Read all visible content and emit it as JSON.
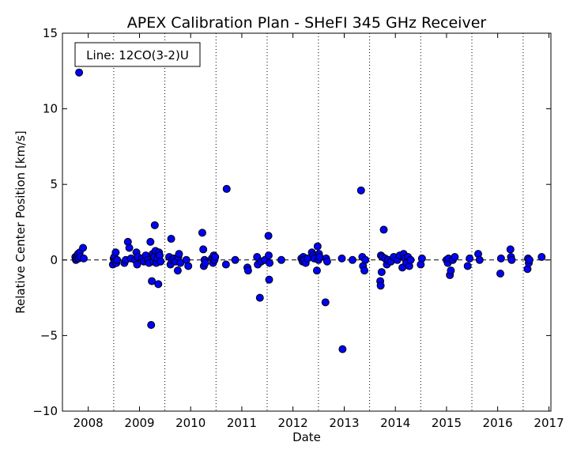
{
  "chart_data": {
    "type": "scatter",
    "title": "APEX Calibration Plan - SHeFI 345 GHz Receiver",
    "xlabel": "Date",
    "ylabel": "Relative Center Position [km/s]",
    "annotation": "Line: 12CO(3-2)U",
    "xlim": [
      "2007-07-01",
      "2017-01-15"
    ],
    "ylim": [
      -10,
      15
    ],
    "x_ticks": [
      "2008",
      "2009",
      "2010",
      "2011",
      "2012",
      "2013",
      "2014",
      "2015",
      "2016",
      "2017"
    ],
    "x_tick_dates": [
      "2008-01-01",
      "2009-01-01",
      "2010-01-01",
      "2011-01-01",
      "2012-01-01",
      "2013-01-01",
      "2014-01-01",
      "2015-01-01",
      "2016-01-01",
      "2017-01-01"
    ],
    "y_ticks": [
      -10,
      -5,
      0,
      5,
      10,
      15
    ],
    "y_tick_labels": [
      "−10",
      "−5",
      "0",
      "5",
      "10",
      "15"
    ],
    "reference_line_y": 0,
    "semester_lines": [
      "2008-07-01",
      "2009-07-01",
      "2010-07-01",
      "2011-07-01",
      "2012-07-01",
      "2013-07-01",
      "2014-07-01",
      "2015-07-01",
      "2016-07-01"
    ],
    "marker_color": "#0000ff",
    "marker_edge": "#000000",
    "points": [
      [
        "2007-10-01",
        0.2
      ],
      [
        "2007-10-05",
        0.0
      ],
      [
        "2007-10-10",
        0.1
      ],
      [
        "2007-10-15",
        0.3
      ],
      [
        "2007-10-20",
        0.4
      ],
      [
        "2007-10-25",
        0.1
      ],
      [
        "2007-10-28",
        12.4
      ],
      [
        "2007-11-01",
        0.5
      ],
      [
        "2007-11-05",
        0.2
      ],
      [
        "2007-11-25",
        0.8
      ],
      [
        "2007-11-30",
        0.1
      ],
      [
        "2008-06-25",
        -0.3
      ],
      [
        "2008-07-01",
        0.1
      ],
      [
        "2008-07-05",
        0.2
      ],
      [
        "2008-07-10",
        -0.1
      ],
      [
        "2008-07-15",
        0.5
      ],
      [
        "2008-07-20",
        -0.2
      ],
      [
        "2008-07-25",
        0.0
      ],
      [
        "2008-09-15",
        -0.2
      ],
      [
        "2008-09-25",
        0.0
      ],
      [
        "2008-10-10",
        1.2
      ],
      [
        "2008-10-20",
        0.8
      ],
      [
        "2008-11-01",
        0.1
      ],
      [
        "2008-12-01",
        0.0
      ],
      [
        "2008-12-10",
        0.5
      ],
      [
        "2008-12-15",
        -0.3
      ],
      [
        "2008-12-20",
        0.2
      ],
      [
        "2009-01-20",
        0.1
      ],
      [
        "2009-02-01",
        -0.1
      ],
      [
        "2009-02-15",
        0.3
      ],
      [
        "2009-03-01",
        0.0
      ],
      [
        "2009-03-10",
        -0.2
      ],
      [
        "2009-03-20",
        1.2
      ],
      [
        "2009-03-25",
        -4.3
      ],
      [
        "2009-03-30",
        -1.4
      ],
      [
        "2009-04-05",
        0.4
      ],
      [
        "2009-04-10",
        -0.1
      ],
      [
        "2009-04-15",
        0.2
      ],
      [
        "2009-04-20",
        2.3
      ],
      [
        "2009-04-25",
        0.6
      ],
      [
        "2009-05-01",
        -0.2
      ],
      [
        "2009-05-10",
        0.1
      ],
      [
        "2009-05-15",
        -1.6
      ],
      [
        "2009-05-20",
        0.5
      ],
      [
        "2009-05-25",
        0.3
      ],
      [
        "2009-06-01",
        -0.1
      ],
      [
        "2009-08-01",
        0.2
      ],
      [
        "2009-08-10",
        -0.3
      ],
      [
        "2009-08-15",
        1.4
      ],
      [
        "2009-08-20",
        0.0
      ],
      [
        "2009-09-01",
        0.1
      ],
      [
        "2009-09-15",
        -0.1
      ],
      [
        "2009-10-01",
        -0.7
      ],
      [
        "2009-10-05",
        0.2
      ],
      [
        "2009-10-10",
        0.4
      ],
      [
        "2009-10-20",
        -0.2
      ],
      [
        "2009-12-01",
        0.0
      ],
      [
        "2009-12-15",
        -0.4
      ],
      [
        "2010-03-25",
        1.8
      ],
      [
        "2010-04-01",
        0.7
      ],
      [
        "2010-04-05",
        -0.4
      ],
      [
        "2010-04-10",
        0.0
      ],
      [
        "2010-04-15",
        -0.2
      ],
      [
        "2010-06-01",
        0.1
      ],
      [
        "2010-06-10",
        -0.2
      ],
      [
        "2010-06-15",
        0.3
      ],
      [
        "2010-06-20",
        0.0
      ],
      [
        "2010-06-25",
        0.2
      ],
      [
        "2010-09-10",
        -0.3
      ],
      [
        "2010-09-15",
        4.7
      ],
      [
        "2010-11-15",
        0.0
      ],
      [
        "2011-02-10",
        -0.5
      ],
      [
        "2011-02-15",
        -0.7
      ],
      [
        "2011-04-20",
        0.2
      ],
      [
        "2011-04-25",
        -0.3
      ],
      [
        "2011-05-10",
        -2.5
      ],
      [
        "2011-05-20",
        -0.1
      ],
      [
        "2011-06-15",
        0.0
      ],
      [
        "2011-07-10",
        1.6
      ],
      [
        "2011-07-12",
        0.3
      ],
      [
        "2011-07-15",
        -1.3
      ],
      [
        "2011-07-18",
        -0.2
      ],
      [
        "2011-10-10",
        0.0
      ],
      [
        "2012-03-01",
        0.1
      ],
      [
        "2012-03-10",
        -0.1
      ],
      [
        "2012-03-15",
        0.2
      ],
      [
        "2012-03-20",
        0.0
      ],
      [
        "2012-04-01",
        -0.2
      ],
      [
        "2012-04-15",
        0.1
      ],
      [
        "2012-05-15",
        0.5
      ],
      [
        "2012-05-25",
        0.3
      ],
      [
        "2012-06-01",
        0.1
      ],
      [
        "2012-06-20",
        -0.7
      ],
      [
        "2012-06-25",
        0.9
      ],
      [
        "2012-07-01",
        0.0
      ],
      [
        "2012-07-05",
        0.4
      ],
      [
        "2012-07-10",
        0.2
      ],
      [
        "2012-08-20",
        -2.8
      ],
      [
        "2012-08-25",
        0.1
      ],
      [
        "2012-09-01",
        -0.1
      ],
      [
        "2012-12-15",
        0.1
      ],
      [
        "2012-12-20",
        -5.9
      ],
      [
        "2013-03-01",
        0.0
      ],
      [
        "2013-05-01",
        4.6
      ],
      [
        "2013-05-10",
        0.2
      ],
      [
        "2013-05-15",
        -0.4
      ],
      [
        "2013-05-25",
        -0.7
      ],
      [
        "2013-06-01",
        0.0
      ],
      [
        "2013-09-15",
        -1.4
      ],
      [
        "2013-09-18",
        -1.7
      ],
      [
        "2013-09-20",
        0.3
      ],
      [
        "2013-09-25",
        -0.8
      ],
      [
        "2013-10-01",
        0.2
      ],
      [
        "2013-10-10",
        2.0
      ],
      [
        "2013-10-20",
        0.1
      ],
      [
        "2013-11-01",
        -0.3
      ],
      [
        "2013-11-10",
        0.0
      ],
      [
        "2013-12-01",
        -0.1
      ],
      [
        "2013-12-20",
        0.2
      ],
      [
        "2014-01-15",
        0.0
      ],
      [
        "2014-02-01",
        0.3
      ],
      [
        "2014-02-20",
        -0.5
      ],
      [
        "2014-03-01",
        0.4
      ],
      [
        "2014-03-10",
        0.1
      ],
      [
        "2014-03-20",
        -0.2
      ],
      [
        "2014-04-01",
        0.2
      ],
      [
        "2014-04-10",
        -0.4
      ],
      [
        "2014-04-20",
        0.0
      ],
      [
        "2014-07-01",
        -0.3
      ],
      [
        "2014-07-10",
        0.1
      ],
      [
        "2015-01-01",
        0.0
      ],
      [
        "2015-01-10",
        -0.2
      ],
      [
        "2015-01-15",
        0.1
      ],
      [
        "2015-01-25",
        -1.0
      ],
      [
        "2015-02-01",
        -0.7
      ],
      [
        "2015-02-15",
        0.0
      ],
      [
        "2015-03-01",
        0.2
      ],
      [
        "2015-06-01",
        -0.4
      ],
      [
        "2015-06-15",
        0.1
      ],
      [
        "2015-08-15",
        0.4
      ],
      [
        "2015-08-25",
        0.0
      ],
      [
        "2016-01-20",
        -0.9
      ],
      [
        "2016-01-25",
        0.1
      ],
      [
        "2016-04-01",
        0.7
      ],
      [
        "2016-04-05",
        0.2
      ],
      [
        "2016-04-10",
        0.0
      ],
      [
        "2016-08-01",
        -0.6
      ],
      [
        "2016-08-05",
        0.1
      ],
      [
        "2016-08-10",
        -0.2
      ],
      [
        "2016-08-15",
        0.0
      ],
      [
        "2016-11-10",
        0.2
      ]
    ]
  }
}
